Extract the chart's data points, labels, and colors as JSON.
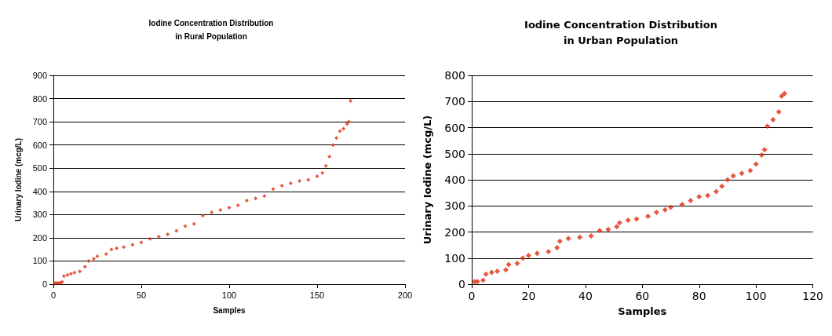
{
  "chart_data": [
    {
      "type": "scatter",
      "title": "Iodine Concentration Distribution\nin Rural Population",
      "xlabel": "Samples",
      "ylabel": "Urinary Iodine (mcg/L)",
      "xlim": [
        0,
        200
      ],
      "xticks": [
        0,
        50,
        100,
        150,
        200
      ],
      "ylim": [
        0,
        900
      ],
      "yticks": [
        0,
        100,
        200,
        300,
        400,
        500,
        600,
        700,
        800,
        900
      ],
      "grid": "y",
      "marker": "diamond",
      "series": [
        {
          "color": "#e03010",
          "x": [
            1,
            2,
            3,
            4,
            5,
            6,
            8,
            10,
            12,
            15,
            18,
            20,
            23,
            25,
            30,
            33,
            36,
            40,
            45,
            50,
            55,
            60,
            65,
            70,
            75,
            80,
            85,
            90,
            95,
            100,
            105,
            110,
            115,
            120,
            125,
            130,
            135,
            140,
            145,
            150,
            153,
            155,
            157,
            159,
            161,
            163,
            165,
            167,
            168,
            169
          ],
          "values": [
            5,
            5,
            5,
            5,
            10,
            35,
            40,
            45,
            50,
            55,
            75,
            100,
            110,
            120,
            130,
            150,
            155,
            160,
            170,
            180,
            195,
            205,
            215,
            230,
            250,
            260,
            295,
            310,
            320,
            330,
            340,
            360,
            370,
            380,
            410,
            425,
            435,
            445,
            450,
            465,
            480,
            510,
            550,
            600,
            630,
            660,
            670,
            690,
            700,
            790
          ]
        }
      ]
    },
    {
      "type": "scatter",
      "title": "Iodine Concentration Distribution\nin Urban Population",
      "xlabel": "Samples",
      "ylabel": "Urinary Iodine (mcg/L)",
      "xlim": [
        0,
        120
      ],
      "xticks": [
        0,
        20,
        40,
        60,
        80,
        100,
        120
      ],
      "ylim": [
        0,
        800
      ],
      "yticks": [
        0,
        100,
        200,
        300,
        400,
        500,
        600,
        700,
        800
      ],
      "grid": "y",
      "marker": "diamond",
      "series": [
        {
          "color": "#e03010",
          "x": [
            1,
            2,
            4,
            5,
            7,
            9,
            12,
            13,
            16,
            18,
            20,
            23,
            27,
            30,
            31,
            34,
            38,
            42,
            45,
            48,
            51,
            52,
            55,
            58,
            62,
            65,
            68,
            70,
            74,
            77,
            80,
            83,
            86,
            88,
            90,
            92,
            95,
            98,
            100,
            102,
            103,
            104,
            106,
            108,
            109,
            110
          ],
          "values": [
            10,
            10,
            15,
            38,
            45,
            50,
            55,
            75,
            80,
            100,
            110,
            118,
            125,
            140,
            165,
            175,
            180,
            185,
            205,
            210,
            220,
            235,
            245,
            250,
            260,
            275,
            285,
            295,
            305,
            320,
            335,
            340,
            355,
            375,
            400,
            415,
            425,
            435,
            460,
            495,
            515,
            605,
            630,
            660,
            720,
            730
          ]
        }
      ]
    }
  ]
}
